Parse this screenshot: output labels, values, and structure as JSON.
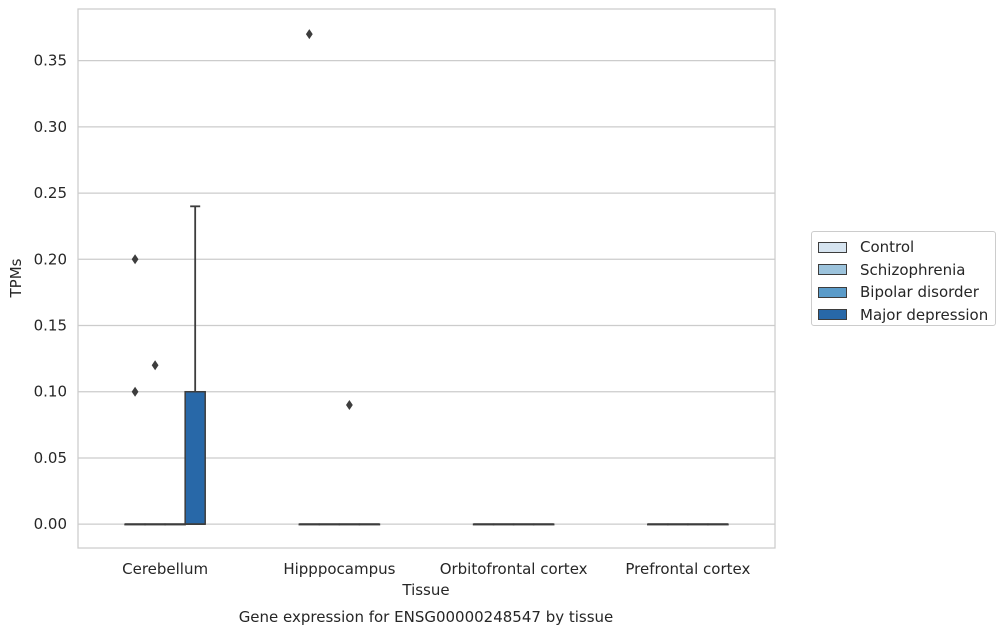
{
  "chart_data": {
    "type": "box",
    "caption": "Gene expression for ENSG00000248547 by tissue",
    "xlabel": "Tissue",
    "ylabel": "TPMs",
    "ylim": [
      -0.018,
      0.389
    ],
    "yticks": [
      "0.00",
      "0.05",
      "0.10",
      "0.15",
      "0.20",
      "0.25",
      "0.30",
      "0.35"
    ],
    "grid": true,
    "legend_placement": "right-center",
    "categories": [
      "Cerebellum",
      "Hipppocampus",
      "Orbitofrontal cortex",
      "Prefrontal cortex"
    ],
    "series": [
      {
        "name": "Control",
        "color": "#d6e4f0",
        "boxes": [
          {
            "q1": 0,
            "median": 0,
            "q3": 0,
            "whisker_low": 0,
            "whisker_high": 0,
            "outliers": [
              0.2,
              0.1
            ]
          },
          {
            "q1": 0,
            "median": 0,
            "q3": 0,
            "whisker_low": 0,
            "whisker_high": 0,
            "outliers": [
              0.37
            ]
          },
          {
            "q1": 0,
            "median": 0,
            "q3": 0,
            "whisker_low": 0,
            "whisker_high": 0,
            "outliers": []
          },
          {
            "q1": 0,
            "median": 0,
            "q3": 0,
            "whisker_low": 0,
            "whisker_high": 0,
            "outliers": []
          }
        ]
      },
      {
        "name": "Schizophrenia",
        "color": "#9cc3dc",
        "boxes": [
          {
            "q1": 0,
            "median": 0,
            "q3": 0,
            "whisker_low": 0,
            "whisker_high": 0,
            "outliers": [
              0.12
            ]
          },
          {
            "q1": 0,
            "median": 0,
            "q3": 0,
            "whisker_low": 0,
            "whisker_high": 0,
            "outliers": []
          },
          {
            "q1": 0,
            "median": 0,
            "q3": 0,
            "whisker_low": 0,
            "whisker_high": 0,
            "outliers": []
          },
          {
            "q1": 0,
            "median": 0,
            "q3": 0,
            "whisker_low": 0,
            "whisker_high": 0,
            "outliers": []
          }
        ]
      },
      {
        "name": "Bipolar disorder",
        "color": "#5a9bc9",
        "boxes": [
          {
            "q1": 0,
            "median": 0,
            "q3": 0,
            "whisker_low": 0,
            "whisker_high": 0,
            "outliers": []
          },
          {
            "q1": 0,
            "median": 0,
            "q3": 0,
            "whisker_low": 0,
            "whisker_high": 0,
            "outliers": [
              0.09
            ]
          },
          {
            "q1": 0,
            "median": 0,
            "q3": 0,
            "whisker_low": 0,
            "whisker_high": 0,
            "outliers": []
          },
          {
            "q1": 0,
            "median": 0,
            "q3": 0,
            "whisker_low": 0,
            "whisker_high": 0,
            "outliers": []
          }
        ]
      },
      {
        "name": "Major depression",
        "color": "#2868a8",
        "boxes": [
          {
            "q1": 0,
            "median": 0,
            "q3": 0.1,
            "whisker_low": 0,
            "whisker_high": 0.24,
            "outliers": []
          },
          {
            "q1": 0,
            "median": 0,
            "q3": 0,
            "whisker_low": 0,
            "whisker_high": 0,
            "outliers": []
          },
          {
            "q1": 0,
            "median": 0,
            "q3": 0,
            "whisker_low": 0,
            "whisker_high": 0,
            "outliers": []
          },
          {
            "q1": 0,
            "median": 0,
            "q3": 0,
            "whisker_low": 0,
            "whisker_high": 0,
            "outliers": []
          }
        ]
      }
    ]
  }
}
